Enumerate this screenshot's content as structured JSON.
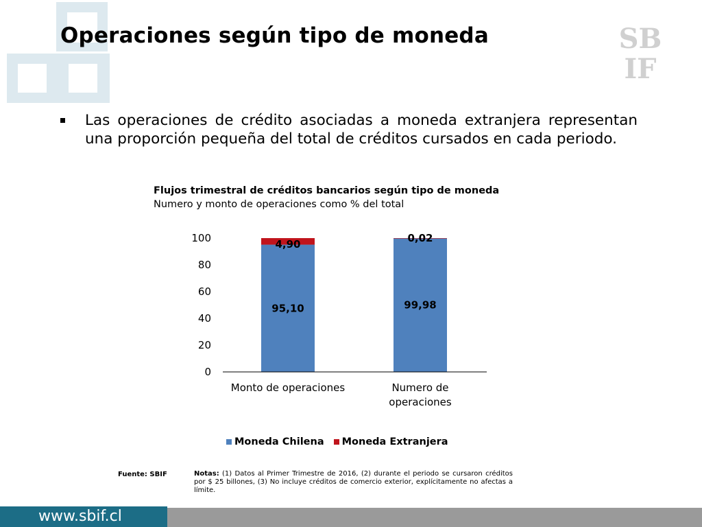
{
  "slide": {
    "title": "Operaciones según tipo de moneda",
    "bullet": "Las operaciones de crédito asociadas a moneda extranjera representan una proporción pequeña del total de créditos cursados en cada periodo.",
    "logo_text_top": "SB",
    "logo_text_bottom": "IF",
    "source": "Fuente: SBIF",
    "notes_label": "Notas:",
    "notes_text": " (1) Datos al Primer Trimestre de 2016, (2) durante el periodo se cursaron créditos por $ 25 billones, (3)  No incluye créditos de comercio exterior, explícitamente no afectas a límite.",
    "footer_url": "www.sbif.cl",
    "colors": {
      "footer_url_bg": "#1c6d86",
      "footer_bar": "#9a9a9a",
      "deco": "#dde9ef",
      "logo": "#d0d0d0"
    }
  },
  "chart_data": {
    "type": "bar",
    "stacked": true,
    "title": "Flujos trimestral de créditos bancarios según tipo de moneda",
    "subtitle": "Numero y monto de operaciones como % del total",
    "categories": [
      [
        "Monto de operaciones"
      ],
      [
        "Numero de",
        "operaciones"
      ]
    ],
    "series": [
      {
        "name": "Moneda Chilena",
        "color": "#4f81bd",
        "values": [
          95.1,
          99.98
        ],
        "labels": [
          "95,10",
          "99,98"
        ]
      },
      {
        "name": "Moneda Extranjera",
        "color": "#c0141c",
        "values": [
          4.9,
          0.02
        ],
        "labels": [
          "4,90",
          "0,02"
        ]
      }
    ],
    "ylim": [
      0,
      100
    ],
    "yticks": [
      "0",
      "20",
      "40",
      "60",
      "80",
      "100"
    ],
    "legend_position": "bottom",
    "grid": false
  }
}
